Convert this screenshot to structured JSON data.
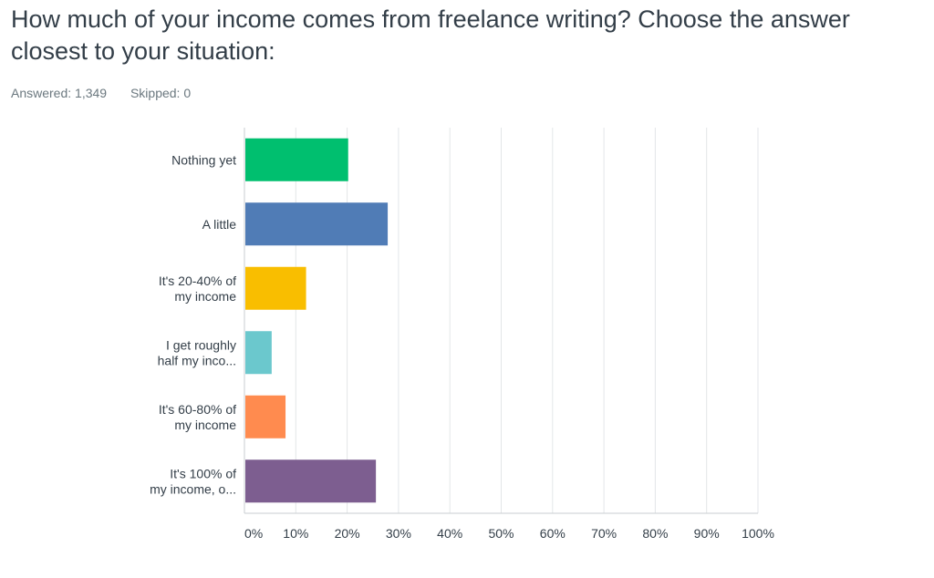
{
  "question": {
    "title": "How much of your income comes from freelance writing? Choose the answer closest to your situation:",
    "answered": "Answered: 1,349",
    "skipped": "Skipped: 0"
  },
  "chart_data": {
    "type": "bar",
    "orientation": "horizontal",
    "grid": true,
    "xlim": [
      0,
      100
    ],
    "tick_values": [
      0,
      10,
      20,
      30,
      40,
      50,
      60,
      70,
      80,
      90,
      100
    ],
    "tick_labels": [
      "0%",
      "10%",
      "20%",
      "30%",
      "40%",
      "50%",
      "60%",
      "70%",
      "80%",
      "90%",
      "100%"
    ],
    "categories": [
      [
        "Nothing yet"
      ],
      [
        "A little"
      ],
      [
        "It's 20-40% of",
        "my income"
      ],
      [
        "I get roughly",
        "half my inco..."
      ],
      [
        "It's 60-80% of",
        "my income"
      ],
      [
        "It's 100% of",
        "my income, o..."
      ]
    ],
    "values": [
      20.2,
      27.9,
      12.0,
      5.3,
      8.0,
      25.6
    ],
    "colors": [
      "#00bf6f",
      "#507cb6",
      "#f9be00",
      "#6bc8cd",
      "#ff8b4f",
      "#7d5e90"
    ]
  }
}
